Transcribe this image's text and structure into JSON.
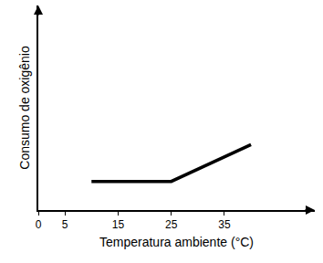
{
  "chart_data": {
    "type": "line",
    "x_label": "Temperatura ambiente (°C)",
    "y_label": "Consumo de oxigênio",
    "x": [
      10,
      25,
      40
    ],
    "values": [
      1.4,
      1.4,
      3.2
    ],
    "color": "#000000",
    "xlim": [
      0,
      52
    ],
    "xticks": [
      0,
      5,
      15,
      25,
      35
    ],
    "ylim": [
      0,
      10
    ],
    "yticks": [],
    "grid": false,
    "tick_labels": "x"
  }
}
